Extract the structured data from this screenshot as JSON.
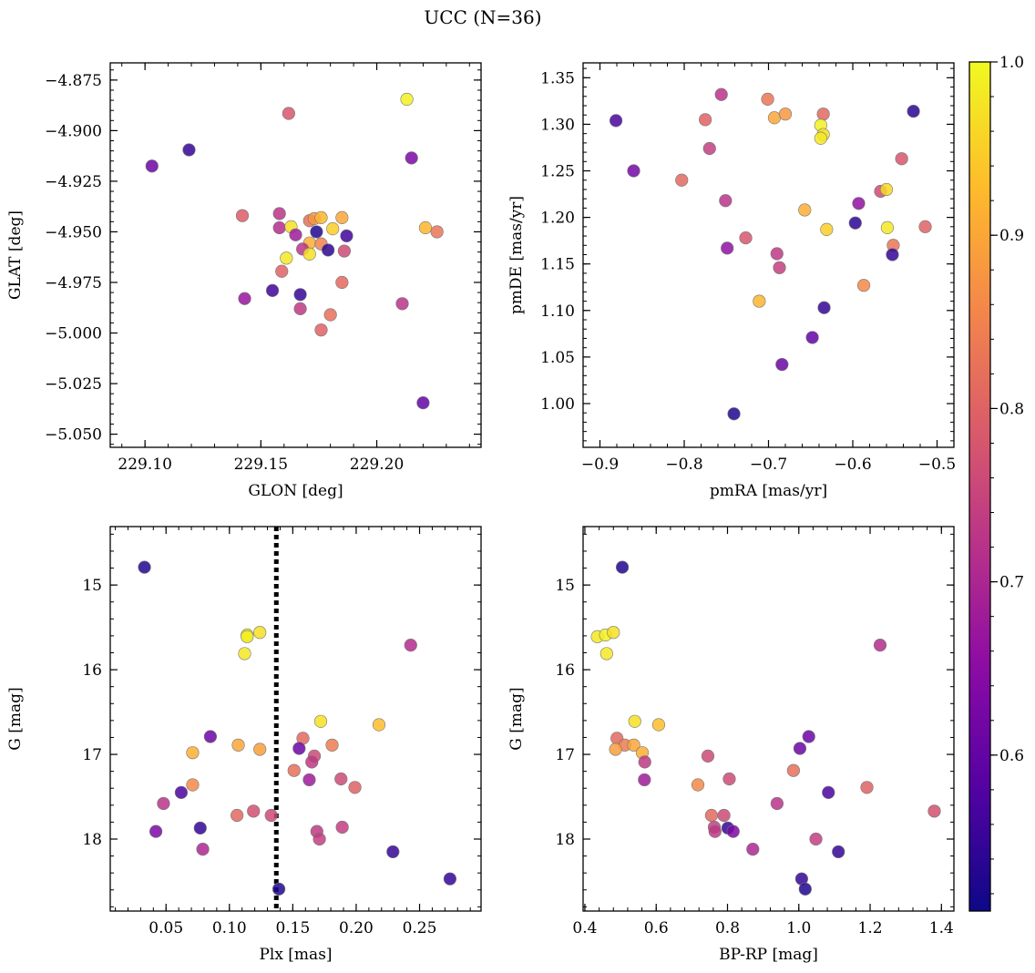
{
  "figure": {
    "title": "UCC (N=36)",
    "colorbar_ticks": [
      "0.6",
      "0.7",
      "0.8",
      "0.9",
      "1.0"
    ],
    "colorbar_range": [
      0.51,
      1.0
    ],
    "colormap": [
      "#0d0887",
      "#5302a3",
      "#8b0aa5",
      "#b83289",
      "#db5c68",
      "#f48849",
      "#febd2a",
      "#f0f921"
    ],
    "marker_edge_color": "#777777"
  },
  "chart_data": [
    {
      "type": "scatter",
      "xlabel": "GLON [deg]",
      "ylabel": "GLAT [deg]",
      "xlim": [
        229.085,
        229.245
      ],
      "ylim": [
        -5.0565,
        -4.8665
      ],
      "xticks": [
        229.1,
        229.15,
        229.2
      ],
      "xtick_labels": [
        "229.10",
        "229.15",
        "229.20"
      ],
      "yticks": [
        -4.875,
        -4.9,
        -4.925,
        -4.95,
        -4.975,
        -5.0,
        -5.025,
        -5.05
      ],
      "ytick_labels": [
        "−4.875",
        "−4.900",
        "−4.925",
        "−4.950",
        "−4.975",
        "−5.000",
        "−5.025",
        "−5.050"
      ],
      "points": [
        {
          "x": 229.213,
          "y": -4.8845,
          "c": 0.99
        },
        {
          "x": 229.162,
          "y": -4.8915,
          "c": 0.78
        },
        {
          "x": 229.119,
          "y": -4.9095,
          "c": 0.55
        },
        {
          "x": 229.103,
          "y": -4.9175,
          "c": 0.61
        },
        {
          "x": 229.215,
          "y": -4.9135,
          "c": 0.63
        },
        {
          "x": 229.142,
          "y": -4.942,
          "c": 0.79
        },
        {
          "x": 229.158,
          "y": -4.941,
          "c": 0.72
        },
        {
          "x": 229.158,
          "y": -4.948,
          "c": 0.71
        },
        {
          "x": 229.163,
          "y": -4.9475,
          "c": 0.97
        },
        {
          "x": 229.171,
          "y": -4.9445,
          "c": 0.82
        },
        {
          "x": 229.173,
          "y": -4.9435,
          "c": 0.88
        },
        {
          "x": 229.176,
          "y": -4.943,
          "c": 0.92
        },
        {
          "x": 229.185,
          "y": -4.943,
          "c": 0.9
        },
        {
          "x": 229.181,
          "y": -4.9485,
          "c": 0.95
        },
        {
          "x": 229.174,
          "y": -4.95,
          "c": 0.53
        },
        {
          "x": 229.165,
          "y": -4.9515,
          "c": 0.68
        },
        {
          "x": 229.171,
          "y": -4.9555,
          "c": 0.91
        },
        {
          "x": 229.176,
          "y": -4.956,
          "c": 0.85
        },
        {
          "x": 229.168,
          "y": -4.9585,
          "c": 0.72
        },
        {
          "x": 229.179,
          "y": -4.959,
          "c": 0.54
        },
        {
          "x": 229.187,
          "y": -4.952,
          "c": 0.56
        },
        {
          "x": 229.186,
          "y": -4.9595,
          "c": 0.76
        },
        {
          "x": 229.171,
          "y": -4.961,
          "c": 0.97
        },
        {
          "x": 229.161,
          "y": -4.963,
          "c": 0.98
        },
        {
          "x": 229.159,
          "y": -4.9695,
          "c": 0.8
        },
        {
          "x": 229.221,
          "y": -4.948,
          "c": 0.92
        },
        {
          "x": 229.226,
          "y": -4.95,
          "c": 0.83
        },
        {
          "x": 229.185,
          "y": -4.975,
          "c": 0.81
        },
        {
          "x": 229.155,
          "y": -4.979,
          "c": 0.56
        },
        {
          "x": 229.167,
          "y": -4.981,
          "c": 0.55
        },
        {
          "x": 229.143,
          "y": -4.983,
          "c": 0.67
        },
        {
          "x": 229.167,
          "y": -4.988,
          "c": 0.73
        },
        {
          "x": 229.18,
          "y": -4.991,
          "c": 0.82
        },
        {
          "x": 229.211,
          "y": -4.9855,
          "c": 0.72
        },
        {
          "x": 229.176,
          "y": -4.9985,
          "c": 0.8
        },
        {
          "x": 229.22,
          "y": -5.0345,
          "c": 0.6
        }
      ]
    },
    {
      "type": "scatter",
      "xlabel": "pmRA [mas/yr]",
      "ylabel": "pmDE [mas/yr]",
      "xlim": [
        -0.92,
        -0.48
      ],
      "ylim": [
        0.953,
        1.366
      ],
      "xticks": [
        -0.9,
        -0.8,
        -0.7,
        -0.6,
        -0.5
      ],
      "xtick_labels": [
        "−0.9",
        "−0.8",
        "−0.7",
        "−0.6",
        "−0.5"
      ],
      "yticks": [
        1.0,
        1.05,
        1.1,
        1.15,
        1.2,
        1.25,
        1.3,
        1.35
      ],
      "ytick_labels": [
        "1.00",
        "1.05",
        "1.10",
        "1.15",
        "1.20",
        "1.25",
        "1.30",
        "1.35"
      ],
      "points": [
        {
          "x": -0.881,
          "y": 1.304,
          "c": 0.57
        },
        {
          "x": -0.86,
          "y": 1.25,
          "c": 0.62
        },
        {
          "x": -0.803,
          "y": 1.24,
          "c": 0.81
        },
        {
          "x": -0.775,
          "y": 1.305,
          "c": 0.8
        },
        {
          "x": -0.77,
          "y": 1.274,
          "c": 0.74
        },
        {
          "x": -0.756,
          "y": 1.332,
          "c": 0.72
        },
        {
          "x": -0.751,
          "y": 1.218,
          "c": 0.72
        },
        {
          "x": -0.749,
          "y": 1.167,
          "c": 0.66
        },
        {
          "x": -0.727,
          "y": 1.178,
          "c": 0.78
        },
        {
          "x": -0.701,
          "y": 1.327,
          "c": 0.83
        },
        {
          "x": -0.693,
          "y": 1.307,
          "c": 0.9
        },
        {
          "x": -0.68,
          "y": 1.311,
          "c": 0.88
        },
        {
          "x": -0.69,
          "y": 1.161,
          "c": 0.73
        },
        {
          "x": -0.687,
          "y": 1.146,
          "c": 0.74
        },
        {
          "x": -0.684,
          "y": 1.042,
          "c": 0.61
        },
        {
          "x": -0.711,
          "y": 1.11,
          "c": 0.92
        },
        {
          "x": -0.657,
          "y": 1.208,
          "c": 0.91
        },
        {
          "x": -0.648,
          "y": 1.071,
          "c": 0.6
        },
        {
          "x": -0.635,
          "y": 1.311,
          "c": 0.81
        },
        {
          "x": -0.638,
          "y": 1.299,
          "c": 0.99
        },
        {
          "x": -0.635,
          "y": 1.289,
          "c": 0.97
        },
        {
          "x": -0.638,
          "y": 1.285,
          "c": 0.98
        },
        {
          "x": -0.631,
          "y": 1.187,
          "c": 0.95
        },
        {
          "x": -0.634,
          "y": 1.103,
          "c": 0.55
        },
        {
          "x": -0.741,
          "y": 0.989,
          "c": 0.53
        },
        {
          "x": -0.597,
          "y": 1.194,
          "c": 0.54
        },
        {
          "x": -0.593,
          "y": 1.215,
          "c": 0.66
        },
        {
          "x": -0.587,
          "y": 1.127,
          "c": 0.86
        },
        {
          "x": -0.567,
          "y": 1.228,
          "c": 0.76
        },
        {
          "x": -0.56,
          "y": 1.23,
          "c": 0.96
        },
        {
          "x": -0.559,
          "y": 1.189,
          "c": 0.98
        },
        {
          "x": -0.552,
          "y": 1.17,
          "c": 0.83
        },
        {
          "x": -0.553,
          "y": 1.16,
          "c": 0.55
        },
        {
          "x": -0.542,
          "y": 1.263,
          "c": 0.78
        },
        {
          "x": -0.528,
          "y": 1.314,
          "c": 0.54
        },
        {
          "x": -0.514,
          "y": 1.19,
          "c": 0.8
        }
      ]
    },
    {
      "type": "scatter",
      "xlabel": "Plx [mas]",
      "ylabel": "G [mag]",
      "xlim": [
        0.006,
        0.2985
      ],
      "ylim": [
        18.85,
        14.31
      ],
      "xticks": [
        0.05,
        0.1,
        0.15,
        0.2,
        0.25
      ],
      "xtick_labels": [
        "0.05",
        "0.10",
        "0.15",
        "0.20",
        "0.25"
      ],
      "yticks": [
        15,
        16,
        17,
        18
      ],
      "ytick_labels": [
        "15",
        "16",
        "17",
        "18"
      ],
      "vline": 0.137,
      "points": [
        {
          "x": 0.033,
          "y": 14.79,
          "c": 0.53
        },
        {
          "x": 0.114,
          "y": 15.59,
          "c": 0.98
        },
        {
          "x": 0.114,
          "y": 15.61,
          "c": 0.99
        },
        {
          "x": 0.124,
          "y": 15.56,
          "c": 0.97
        },
        {
          "x": 0.112,
          "y": 15.81,
          "c": 0.98
        },
        {
          "x": 0.243,
          "y": 15.71,
          "c": 0.71
        },
        {
          "x": 0.172,
          "y": 16.61,
          "c": 0.97
        },
        {
          "x": 0.218,
          "y": 16.65,
          "c": 0.93
        },
        {
          "x": 0.085,
          "y": 16.79,
          "c": 0.61
        },
        {
          "x": 0.158,
          "y": 16.81,
          "c": 0.81
        },
        {
          "x": 0.107,
          "y": 16.89,
          "c": 0.9
        },
        {
          "x": 0.124,
          "y": 16.94,
          "c": 0.89
        },
        {
          "x": 0.071,
          "y": 16.98,
          "c": 0.91
        },
        {
          "x": 0.155,
          "y": 16.93,
          "c": 0.61
        },
        {
          "x": 0.181,
          "y": 16.89,
          "c": 0.84
        },
        {
          "x": 0.167,
          "y": 17.02,
          "c": 0.76
        },
        {
          "x": 0.165,
          "y": 17.09,
          "c": 0.73
        },
        {
          "x": 0.151,
          "y": 17.19,
          "c": 0.82
        },
        {
          "x": 0.163,
          "y": 17.3,
          "c": 0.68
        },
        {
          "x": 0.188,
          "y": 17.29,
          "c": 0.76
        },
        {
          "x": 0.071,
          "y": 17.36,
          "c": 0.86
        },
        {
          "x": 0.199,
          "y": 17.39,
          "c": 0.8
        },
        {
          "x": 0.062,
          "y": 17.45,
          "c": 0.57
        },
        {
          "x": 0.048,
          "y": 17.58,
          "c": 0.72
        },
        {
          "x": 0.119,
          "y": 17.67,
          "c": 0.77
        },
        {
          "x": 0.106,
          "y": 17.72,
          "c": 0.81
        },
        {
          "x": 0.133,
          "y": 17.72,
          "c": 0.76
        },
        {
          "x": 0.077,
          "y": 17.87,
          "c": 0.55
        },
        {
          "x": 0.189,
          "y": 17.86,
          "c": 0.74
        },
        {
          "x": 0.169,
          "y": 17.91,
          "c": 0.73
        },
        {
          "x": 0.042,
          "y": 17.91,
          "c": 0.63
        },
        {
          "x": 0.171,
          "y": 18.0,
          "c": 0.74
        },
        {
          "x": 0.079,
          "y": 18.12,
          "c": 0.7
        },
        {
          "x": 0.229,
          "y": 18.15,
          "c": 0.55
        },
        {
          "x": 0.274,
          "y": 18.47,
          "c": 0.55
        },
        {
          "x": 0.139,
          "y": 18.59,
          "c": 0.53
        }
      ]
    },
    {
      "type": "scatter",
      "xlabel": "BP-RP [mag]",
      "ylabel": "G [mag]",
      "xlim": [
        0.395,
        1.435
      ],
      "ylim": [
        18.85,
        14.31
      ],
      "xticks": [
        0.4,
        0.6,
        0.8,
        1.0,
        1.2,
        1.4
      ],
      "xtick_labels": [
        "0.4",
        "0.6",
        "0.8",
        "1.0",
        "1.2",
        "1.4"
      ],
      "yticks": [
        15,
        16,
        17,
        18
      ],
      "ytick_labels": [
        "15",
        "16",
        "17",
        "18"
      ],
      "points": [
        {
          "x": 0.505,
          "y": 14.79,
          "c": 0.53
        },
        {
          "x": 0.435,
          "y": 15.61,
          "c": 0.98
        },
        {
          "x": 0.458,
          "y": 15.59,
          "c": 0.99
        },
        {
          "x": 0.48,
          "y": 15.56,
          "c": 0.97
        },
        {
          "x": 0.461,
          "y": 15.81,
          "c": 0.98
        },
        {
          "x": 1.228,
          "y": 15.71,
          "c": 0.71
        },
        {
          "x": 0.54,
          "y": 16.61,
          "c": 0.97
        },
        {
          "x": 0.607,
          "y": 16.65,
          "c": 0.93
        },
        {
          "x": 0.49,
          "y": 16.81,
          "c": 0.81
        },
        {
          "x": 1.028,
          "y": 16.79,
          "c": 0.61
        },
        {
          "x": 0.512,
          "y": 16.89,
          "c": 0.84
        },
        {
          "x": 0.537,
          "y": 16.89,
          "c": 0.9
        },
        {
          "x": 0.486,
          "y": 16.94,
          "c": 0.89
        },
        {
          "x": 0.561,
          "y": 16.98,
          "c": 0.91
        },
        {
          "x": 1.003,
          "y": 16.93,
          "c": 0.61
        },
        {
          "x": 0.745,
          "y": 17.02,
          "c": 0.76
        },
        {
          "x": 0.568,
          "y": 17.09,
          "c": 0.73
        },
        {
          "x": 0.985,
          "y": 17.19,
          "c": 0.82
        },
        {
          "x": 0.567,
          "y": 17.3,
          "c": 0.68
        },
        {
          "x": 0.805,
          "y": 17.29,
          "c": 0.76
        },
        {
          "x": 0.717,
          "y": 17.36,
          "c": 0.86
        },
        {
          "x": 1.191,
          "y": 17.39,
          "c": 0.8
        },
        {
          "x": 1.083,
          "y": 17.45,
          "c": 0.57
        },
        {
          "x": 0.939,
          "y": 17.58,
          "c": 0.72
        },
        {
          "x": 1.38,
          "y": 17.67,
          "c": 0.77
        },
        {
          "x": 0.755,
          "y": 17.72,
          "c": 0.81
        },
        {
          "x": 0.79,
          "y": 17.72,
          "c": 0.76
        },
        {
          "x": 0.801,
          "y": 17.87,
          "c": 0.55
        },
        {
          "x": 0.763,
          "y": 17.86,
          "c": 0.74
        },
        {
          "x": 0.765,
          "y": 17.91,
          "c": 0.73
        },
        {
          "x": 0.816,
          "y": 17.91,
          "c": 0.63
        },
        {
          "x": 1.048,
          "y": 18.0,
          "c": 0.74
        },
        {
          "x": 0.871,
          "y": 18.12,
          "c": 0.7
        },
        {
          "x": 1.111,
          "y": 18.15,
          "c": 0.55
        },
        {
          "x": 1.008,
          "y": 18.47,
          "c": 0.55
        },
        {
          "x": 1.018,
          "y": 18.59,
          "c": 0.53
        }
      ]
    }
  ]
}
